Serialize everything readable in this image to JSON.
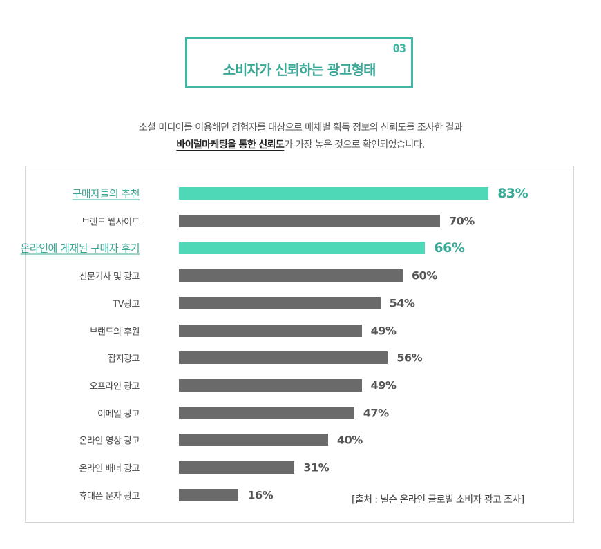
{
  "header": {
    "number": "03",
    "title": "소비자가 신뢰하는 광고형태"
  },
  "description": {
    "line1": "소셜 미디어를 이용해던 경험자를 대상으로 매체별 획득 정보의 신뢰도를 조사한 결과",
    "line2_emphasis": "바이럴마케팅을 통한 신뢰도",
    "line2_rest": "가 가장 높은 것으로 확인되었습니다."
  },
  "colors": {
    "highlight_bar": "#4fd8b8",
    "highlight_text": "#3aa896",
    "normal_bar": "#6a6a6a",
    "border_accent": "#3db8a5"
  },
  "chart_data": {
    "type": "bar",
    "orientation": "horizontal",
    "categories": [
      "구매자들의 추천",
      "브랜드 웹사이트",
      "온라인에 게재된 구매자 후기",
      "신문기사 및 광고",
      "TV광고",
      "브랜드의 후원",
      "잡지광고",
      "오프라인 광고",
      "이메일 광고",
      "온라인 영상 광고",
      "온라인 배너 광고",
      "휴대폰 문자 광고"
    ],
    "values": [
      83,
      70,
      66,
      60,
      54,
      49,
      56,
      49,
      47,
      40,
      31,
      16
    ],
    "value_labels": [
      "83%",
      "70%",
      "66%",
      "60%",
      "54%",
      "49%",
      "56%",
      "49%",
      "47%",
      "40%",
      "31%",
      "16%"
    ],
    "highlighted": [
      true,
      false,
      true,
      false,
      false,
      false,
      false,
      false,
      false,
      false,
      false,
      false
    ],
    "unit": "%",
    "xlim": [
      0,
      100
    ],
    "source": "[출처 : 닐슨 온라인 글로벌 소비자 광고 조사]"
  }
}
